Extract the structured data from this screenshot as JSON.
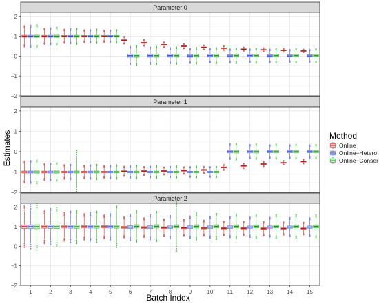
{
  "chart_data": {
    "type": "box",
    "ylabel": "Estimates",
    "xlabel": "Batch Index",
    "x_categories": [
      "1",
      "2",
      "3",
      "4",
      "5",
      "6",
      "7",
      "8",
      "9",
      "10",
      "11",
      "12",
      "13",
      "14",
      "15"
    ],
    "ylim": [
      -2,
      2.2
    ],
    "y_ticks": [
      -2,
      -1,
      0,
      1,
      2
    ],
    "y_tick_labels": [
      "−2",
      "−1",
      "0",
      "1",
      "2"
    ],
    "grid": true,
    "legend": {
      "title": "Method",
      "placement": "right",
      "entries": [
        {
          "name": "Online",
          "color": "#e06060",
          "fill": "#f6c9c9",
          "dark": "#a82020"
        },
        {
          "name": "Online−Hetero",
          "color": "#7c86e8",
          "fill": "#d3d7fa",
          "dark": "#2f4dc8"
        },
        {
          "name": "Online−Conser",
          "color": "#5cb85c",
          "fill": "#c9eac9",
          "dark": "#2a8a2a"
        }
      ]
    },
    "panels": [
      {
        "title": "Parameter 0",
        "series": [
          {
            "name": "Online",
            "median": [
              1.0,
              1.0,
              1.0,
              1.0,
              1.0,
              0.8,
              0.67,
              0.57,
              0.5,
              0.44,
              0.4,
              0.35,
              0.32,
              0.29,
              0.26
            ],
            "iqr": [
              0.1,
              0.09,
              0.08,
              0.08,
              0.07,
              0.05,
              0.05,
              0.04,
              0.04,
              0.04,
              0.03,
              0.03,
              0.03,
              0.03,
              0.03
            ],
            "whisker": [
              0.4,
              0.3,
              0.26,
              0.24,
              0.22,
              0.14,
              0.12,
              0.1,
              0.09,
              0.08,
              0.08,
              0.07,
              0.07,
              0.06,
              0.06
            ]
          },
          {
            "name": "Online−Hetero",
            "median": [
              1.0,
              1.0,
              1.0,
              1.0,
              1.0,
              0.02,
              0.02,
              0.02,
              0.01,
              0.02,
              0.01,
              0.02,
              0.01,
              0.01,
              0.01
            ],
            "iqr": [
              0.1,
              0.1,
              0.09,
              0.09,
              0.08,
              0.15,
              0.14,
              0.14,
              0.13,
              0.13,
              0.12,
              0.12,
              0.12,
              0.11,
              0.11
            ],
            "whisker": [
              0.42,
              0.32,
              0.28,
              0.25,
              0.23,
              0.35,
              0.32,
              0.3,
              0.28,
              0.27,
              0.26,
              0.25,
              0.25,
              0.24,
              0.24
            ]
          },
          {
            "name": "Online−Conser",
            "median": [
              1.0,
              1.0,
              1.0,
              1.0,
              1.0,
              0.02,
              0.02,
              0.02,
              0.02,
              0.02,
              0.02,
              0.02,
              0.02,
              0.02,
              0.02
            ],
            "iqr": [
              0.11,
              0.11,
              0.1,
              0.1,
              0.09,
              0.16,
              0.15,
              0.14,
              0.14,
              0.14,
              0.13,
              0.13,
              0.13,
              0.12,
              0.12
            ],
            "whisker": [
              0.44,
              0.34,
              0.3,
              0.27,
              0.25,
              0.38,
              0.35,
              0.33,
              0.31,
              0.3,
              0.29,
              0.28,
              0.27,
              0.27,
              0.26
            ]
          }
        ]
      },
      {
        "title": "Parameter 1",
        "series": [
          {
            "name": "Online",
            "median": [
              -1.0,
              -1.0,
              -1.0,
              -1.0,
              -1.0,
              -0.97,
              -0.96,
              -0.95,
              -0.93,
              -0.9,
              -0.78,
              -0.7,
              -0.61,
              -0.55,
              -0.49
            ],
            "iqr": [
              0.1,
              0.09,
              0.08,
              0.08,
              0.07,
              0.07,
              0.06,
              0.06,
              0.06,
              0.05,
              0.05,
              0.05,
              0.04,
              0.04,
              0.04
            ],
            "whisker": [
              0.4,
              0.3,
              0.26,
              0.24,
              0.22,
              0.18,
              0.16,
              0.14,
              0.13,
              0.12,
              0.1,
              0.09,
              0.09,
              0.08,
              0.08
            ]
          },
          {
            "name": "Online−Hetero",
            "median": [
              -1.0,
              -1.0,
              -1.0,
              -1.0,
              -1.0,
              -1.0,
              -1.0,
              -1.0,
              -1.0,
              -1.0,
              0.0,
              0.0,
              0.0,
              0.0,
              0.0
            ],
            "iqr": [
              0.1,
              0.1,
              0.09,
              0.09,
              0.08,
              0.08,
              0.08,
              0.08,
              0.07,
              0.07,
              0.12,
              0.12,
              0.11,
              0.11,
              0.11
            ],
            "whisker": [
              0.42,
              0.32,
              0.28,
              0.26,
              0.24,
              0.22,
              0.21,
              0.2,
              0.19,
              0.19,
              0.28,
              0.26,
              0.25,
              0.25,
              0.24
            ]
          },
          {
            "name": "Online−Conser",
            "median": [
              -1.0,
              -1.0,
              -1.0,
              -1.0,
              -1.0,
              -1.0,
              -1.0,
              -1.0,
              -1.0,
              -1.0,
              0.0,
              0.0,
              0.0,
              0.0,
              0.0
            ],
            "iqr": [
              0.11,
              0.11,
              0.1,
              0.1,
              0.09,
              0.09,
              0.09,
              0.08,
              0.08,
              0.08,
              0.13,
              0.13,
              0.12,
              0.12,
              0.12
            ],
            "whisker": [
              0.44,
              0.34,
              0.8,
              0.28,
              0.26,
              0.24,
              0.23,
              0.22,
              0.21,
              0.2,
              0.3,
              0.28,
              0.27,
              0.27,
              0.26
            ]
          }
        ]
      },
      {
        "title": "Parameter 2",
        "series": [
          {
            "name": "Online",
            "median": [
              1.0,
              1.0,
              1.0,
              1.0,
              1.0,
              0.97,
              0.96,
              0.95,
              0.94,
              0.93,
              0.92,
              0.92,
              0.91,
              0.91,
              0.91
            ],
            "iqr": [
              0.18,
              0.15,
              0.13,
              0.12,
              0.11,
              0.1,
              0.09,
              0.09,
              0.08,
              0.08,
              0.07,
              0.07,
              0.07,
              0.06,
              0.06
            ],
            "whisker": [
              0.8,
              0.65,
              0.55,
              0.5,
              0.45,
              0.4,
              0.37,
              0.34,
              0.32,
              0.3,
              0.28,
              0.27,
              0.26,
              0.25,
              0.24
            ]
          },
          {
            "name": "Online−Hetero",
            "median": [
              1.0,
              1.0,
              1.0,
              1.0,
              1.0,
              0.98,
              0.98,
              0.98,
              0.98,
              0.98,
              0.98,
              0.98,
              0.98,
              0.98,
              0.98
            ],
            "iqr": [
              0.19,
              0.17,
              0.15,
              0.14,
              0.13,
              0.14,
              0.14,
              0.13,
              0.13,
              0.13,
              0.13,
              0.12,
              0.12,
              0.12,
              0.12
            ],
            "whisker": [
              0.85,
              0.7,
              0.6,
              0.55,
              0.5,
              0.5,
              0.48,
              0.45,
              0.43,
              0.42,
              0.4,
              0.39,
              0.38,
              0.37,
              0.36
            ]
          },
          {
            "name": "Online−Conser",
            "median": [
              1.0,
              1.0,
              1.0,
              1.0,
              1.0,
              1.02,
              1.02,
              1.02,
              1.02,
              1.02,
              1.02,
              1.02,
              1.02,
              1.02,
              1.02
            ],
            "iqr": [
              0.2,
              0.18,
              0.16,
              0.15,
              0.15,
              0.17,
              0.17,
              0.16,
              0.16,
              0.16,
              0.15,
              0.15,
              0.15,
              0.15,
              0.15
            ],
            "whisker": [
              0.9,
              0.75,
              0.65,
              0.6,
              0.8,
              0.6,
              0.58,
              0.95,
              0.52,
              0.5,
              0.48,
              0.47,
              0.46,
              0.45,
              0.44
            ]
          }
        ]
      }
    ]
  }
}
